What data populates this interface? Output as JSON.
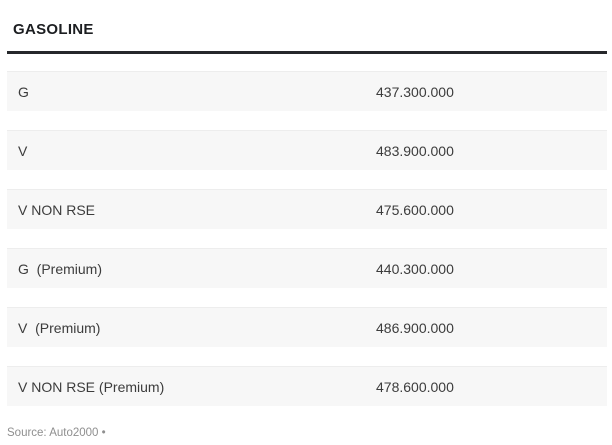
{
  "header": {
    "title": "GASOLINE"
  },
  "table": {
    "rows": [
      {
        "label": "G",
        "value": "437.300.000"
      },
      {
        "label": "V",
        "value": "483.900.000"
      },
      {
        "label": "V NON RSE",
        "value": "475.600.000"
      },
      {
        "label": "G  (Premium)",
        "value": "440.300.000"
      },
      {
        "label": "V  (Premium)",
        "value": "486.900.000"
      },
      {
        "label": "V NON RSE (Premium)",
        "value": "478.600.000"
      }
    ]
  },
  "footer": {
    "source_text": "Source: Auto2000 •"
  },
  "colors": {
    "row_background": "#f7f7f7",
    "header_divider": "#26282b",
    "row_text": "#3c3c3c",
    "source_text": "#8f8f8f"
  }
}
